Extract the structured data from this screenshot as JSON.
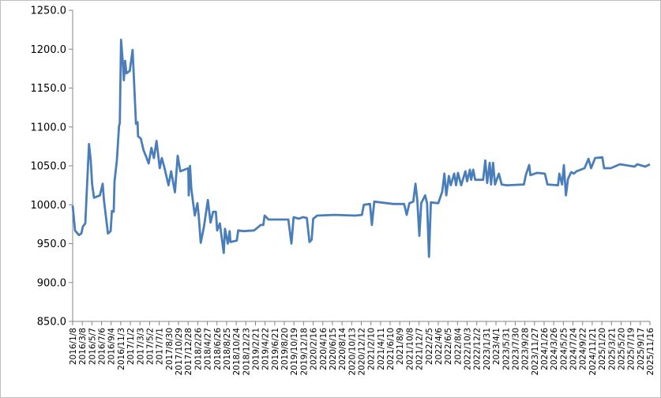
{
  "chart_data": {
    "type": "line",
    "title": "",
    "xlabel": "",
    "ylabel": "",
    "ylim": [
      850,
      1250
    ],
    "y_ticks": [
      "850.0",
      "900.0",
      "950.0",
      "1000.0",
      "1050.0",
      "1100.0",
      "1150.0",
      "1200.0",
      "1250.0"
    ],
    "x_range": [
      "2016/1/8",
      "2025/11/16"
    ],
    "x_tick_labels": [
      "2016/1/8",
      "2016/3/8",
      "2016/5/7",
      "2016/7/6",
      "2016/9/4",
      "2016/11/3",
      "2017/1/2",
      "2017/3/3",
      "2017/5/2",
      "2017/7/1",
      "2017/8/30",
      "2017/10/29",
      "2017/12/28",
      "2018/2/26",
      "2018/4/27",
      "2018/6/26",
      "2018/8/25",
      "2018/10/24",
      "2018/12/23",
      "2019/2/21",
      "2019/4/22",
      "2019/6/21",
      "2019/8/20",
      "2019/10/19",
      "2019/12/18",
      "2020/2/16",
      "2020/4/16",
      "2020/6/15",
      "2020/8/14",
      "2020/10/13",
      "2020/12/12",
      "2021/2/10",
      "2021/4/11",
      "2021/6/10",
      "2021/8/9",
      "2021/10/8",
      "2021/12/7",
      "2022/2/5",
      "2022/4/6",
      "2022/6/5",
      "2022/8/4",
      "2022/10/3",
      "2022/12/2",
      "2023/1/31",
      "2023/4/1",
      "2023/5/31",
      "2023/7/30",
      "2023/9/28",
      "2023/11/27",
      "2024/1/26",
      "2024/3/26",
      "2024/5/25",
      "2024/7/24",
      "2024/9/22",
      "2024/11/21",
      "2025/1/20",
      "2025/3/21",
      "2025/5/20",
      "2025/7/19",
      "2025/9/17",
      "2025/11/16"
    ],
    "grid": false,
    "legend": "none",
    "color": "#4a7ebb",
    "series": [
      {
        "x": [
          "2016/1/8",
          "2016/1/23",
          "2016/2/16",
          "2016/3/2",
          "2016/3/12",
          "2016/3/27",
          "2016/4/19",
          "2016/4/30",
          "2016/5/8",
          "2016/5/20",
          "2016/6/26",
          "2016/7/13",
          "2016/7/21",
          "2016/8/15",
          "2016/9/1",
          "2016/9/9",
          "2016/9/20",
          "2016/9/25",
          "2016/10/10",
          "2016/10/23",
          "2016/10/28",
          "2016/11/5",
          "2016/11/17",
          "2016/11/22",
          "2016/11/30",
          "2016/12/8",
          "2016/12/29",
          "2017/1/16",
          "2017/2/6",
          "2017/2/16",
          "2017/2/19",
          "2017/3/8",
          "2017/3/25",
          "2017/4/10",
          "2017/4/26",
          "2017/5/13",
          "2017/5/29",
          "2017/6/14",
          "2017/7/4",
          "2017/7/17",
          "2017/8/2",
          "2017/8/28",
          "2017/9/13",
          "2017/10/7",
          "2017/10/24",
          "2017/11/9",
          "2017/12/29",
          "2018/1/1",
          "2018/1/9",
          "2018/1/17",
          "2018/2/8",
          "2018/2/24",
          "2018/3/4",
          "2018/3/17",
          "2018/4/6",
          "2018/4/30",
          "2018/5/17",
          "2018/6/2",
          "2018/6/19",
          "2018/6/27",
          "2018/7/14",
          "2018/8/7",
          "2018/8/15",
          "2018/9/1",
          "2018/9/13",
          "2018/9/18",
          "2018/10/28",
          "2018/11/5",
          "2018/12/8",
          "2019/2/12",
          "2019/3/9",
          "2019/3/25",
          "2019/4/11",
          "2019/4/19",
          "2019/5/14",
          "2019/9/14",
          "2019/10/3",
          "2019/10/17",
          "2019/11/19",
          "2019/12/13",
          "2020/1/7",
          "2020/1/24",
          "2020/2/6",
          "2020/2/16",
          "2020/3/12",
          "2020/6/27",
          "2020/11/5",
          "2020/12/16",
          "2020/12/28",
          "2021/2/4",
          "2021/2/16",
          "2021/3/3",
          "2021/5/21",
          "2021/7/1",
          "2021/9/5",
          "2021/9/21",
          "2021/10/8",
          "2021/11/1",
          "2021/11/15",
          "2021/11/26",
          "2021/12/9",
          "2021/12/21",
          "2022/1/14",
          "2022/1/26",
          "2022/2/7",
          "2022/2/19",
          "2022/4/6",
          "2022/5/1",
          "2022/5/14",
          "2022/5/26",
          "2022/6/11",
          "2022/6/23",
          "2022/7/14",
          "2022/7/26",
          "2022/8/7",
          "2022/8/27",
          "2022/9/22",
          "2022/10/3",
          "2022/10/20",
          "2022/10/28",
          "2022/11/10",
          "2022/11/22",
          "2023/1/11",
          "2023/1/24",
          "2023/2/5",
          "2023/2/21",
          "2023/3/1",
          "2023/3/14",
          "2023/3/26",
          "2023/4/19",
          "2023/5/6",
          "2023/6/7",
          "2023/9/22",
          "2023/10/4",
          "2023/10/25",
          "2023/11/2",
          "2023/12/13",
          "2024/1/31",
          "2024/2/16",
          "2024/4/22",
          "2024/4/30",
          "2024/5/17",
          "2024/5/28",
          "2024/6/10",
          "2024/6/23",
          "2024/7/13",
          "2024/7/30",
          "2024/8/15",
          "2024/10/4",
          "2024/10/29",
          "2024/11/14",
          "2024/12/9",
          "2025/1/23",
          "2025/2/3",
          "2025/3/16",
          "2025/5/13",
          "2025/8/12",
          "2025/8/29",
          "2025/10/18",
          "2025/11/16"
        ],
        "y": [
          999,
          967,
          961,
          963,
          972,
          976,
          1078,
          1057,
          1027,
          1009,
          1012,
          1027,
          1006,
          963,
          966,
          992,
          991,
          1030,
          1057,
          1101,
          1105,
          1212,
          1179,
          1160,
          1185,
          1169,
          1172,
          1199,
          1104,
          1106,
          1088,
          1085,
          1070,
          1062,
          1053,
          1073,
          1060,
          1082,
          1047,
          1060,
          1048,
          1025,
          1043,
          1016,
          1063,
          1043,
          1047,
          1012,
          1050,
          1020,
          986,
          1002,
          986,
          951,
          972,
          1006,
          977,
          991,
          991,
          967,
          976,
          938,
          969,
          950,
          966,
          952,
          954,
          967,
          966,
          967,
          971,
          974,
          974,
          986,
          981,
          981,
          950,
          984,
          982,
          984,
          983,
          952,
          955,
          982,
          986,
          987,
          986,
          987,
          1000,
          1001,
          974,
          1004,
          1002,
          1001,
          1001,
          987,
          1002,
          1004,
          1027,
          1006,
          960,
          1002,
          1012,
          1002,
          933,
          1003,
          1002,
          1017,
          1040,
          1012,
          1037,
          1025,
          1040,
          1025,
          1041,
          1025,
          1043,
          1030,
          1045,
          1032,
          1045,
          1032,
          1032,
          1057,
          1028,
          1054,
          1026,
          1054,
          1026,
          1040,
          1026,
          1025,
          1026,
          1038,
          1051,
          1038,
          1041,
          1040,
          1026,
          1025,
          1040,
          1026,
          1051,
          1012,
          1033,
          1042,
          1040,
          1043,
          1047,
          1059,
          1047,
          1060,
          1061,
          1047,
          1047,
          1052,
          1049,
          1052,
          1049,
          1052
        ]
      }
    ]
  }
}
